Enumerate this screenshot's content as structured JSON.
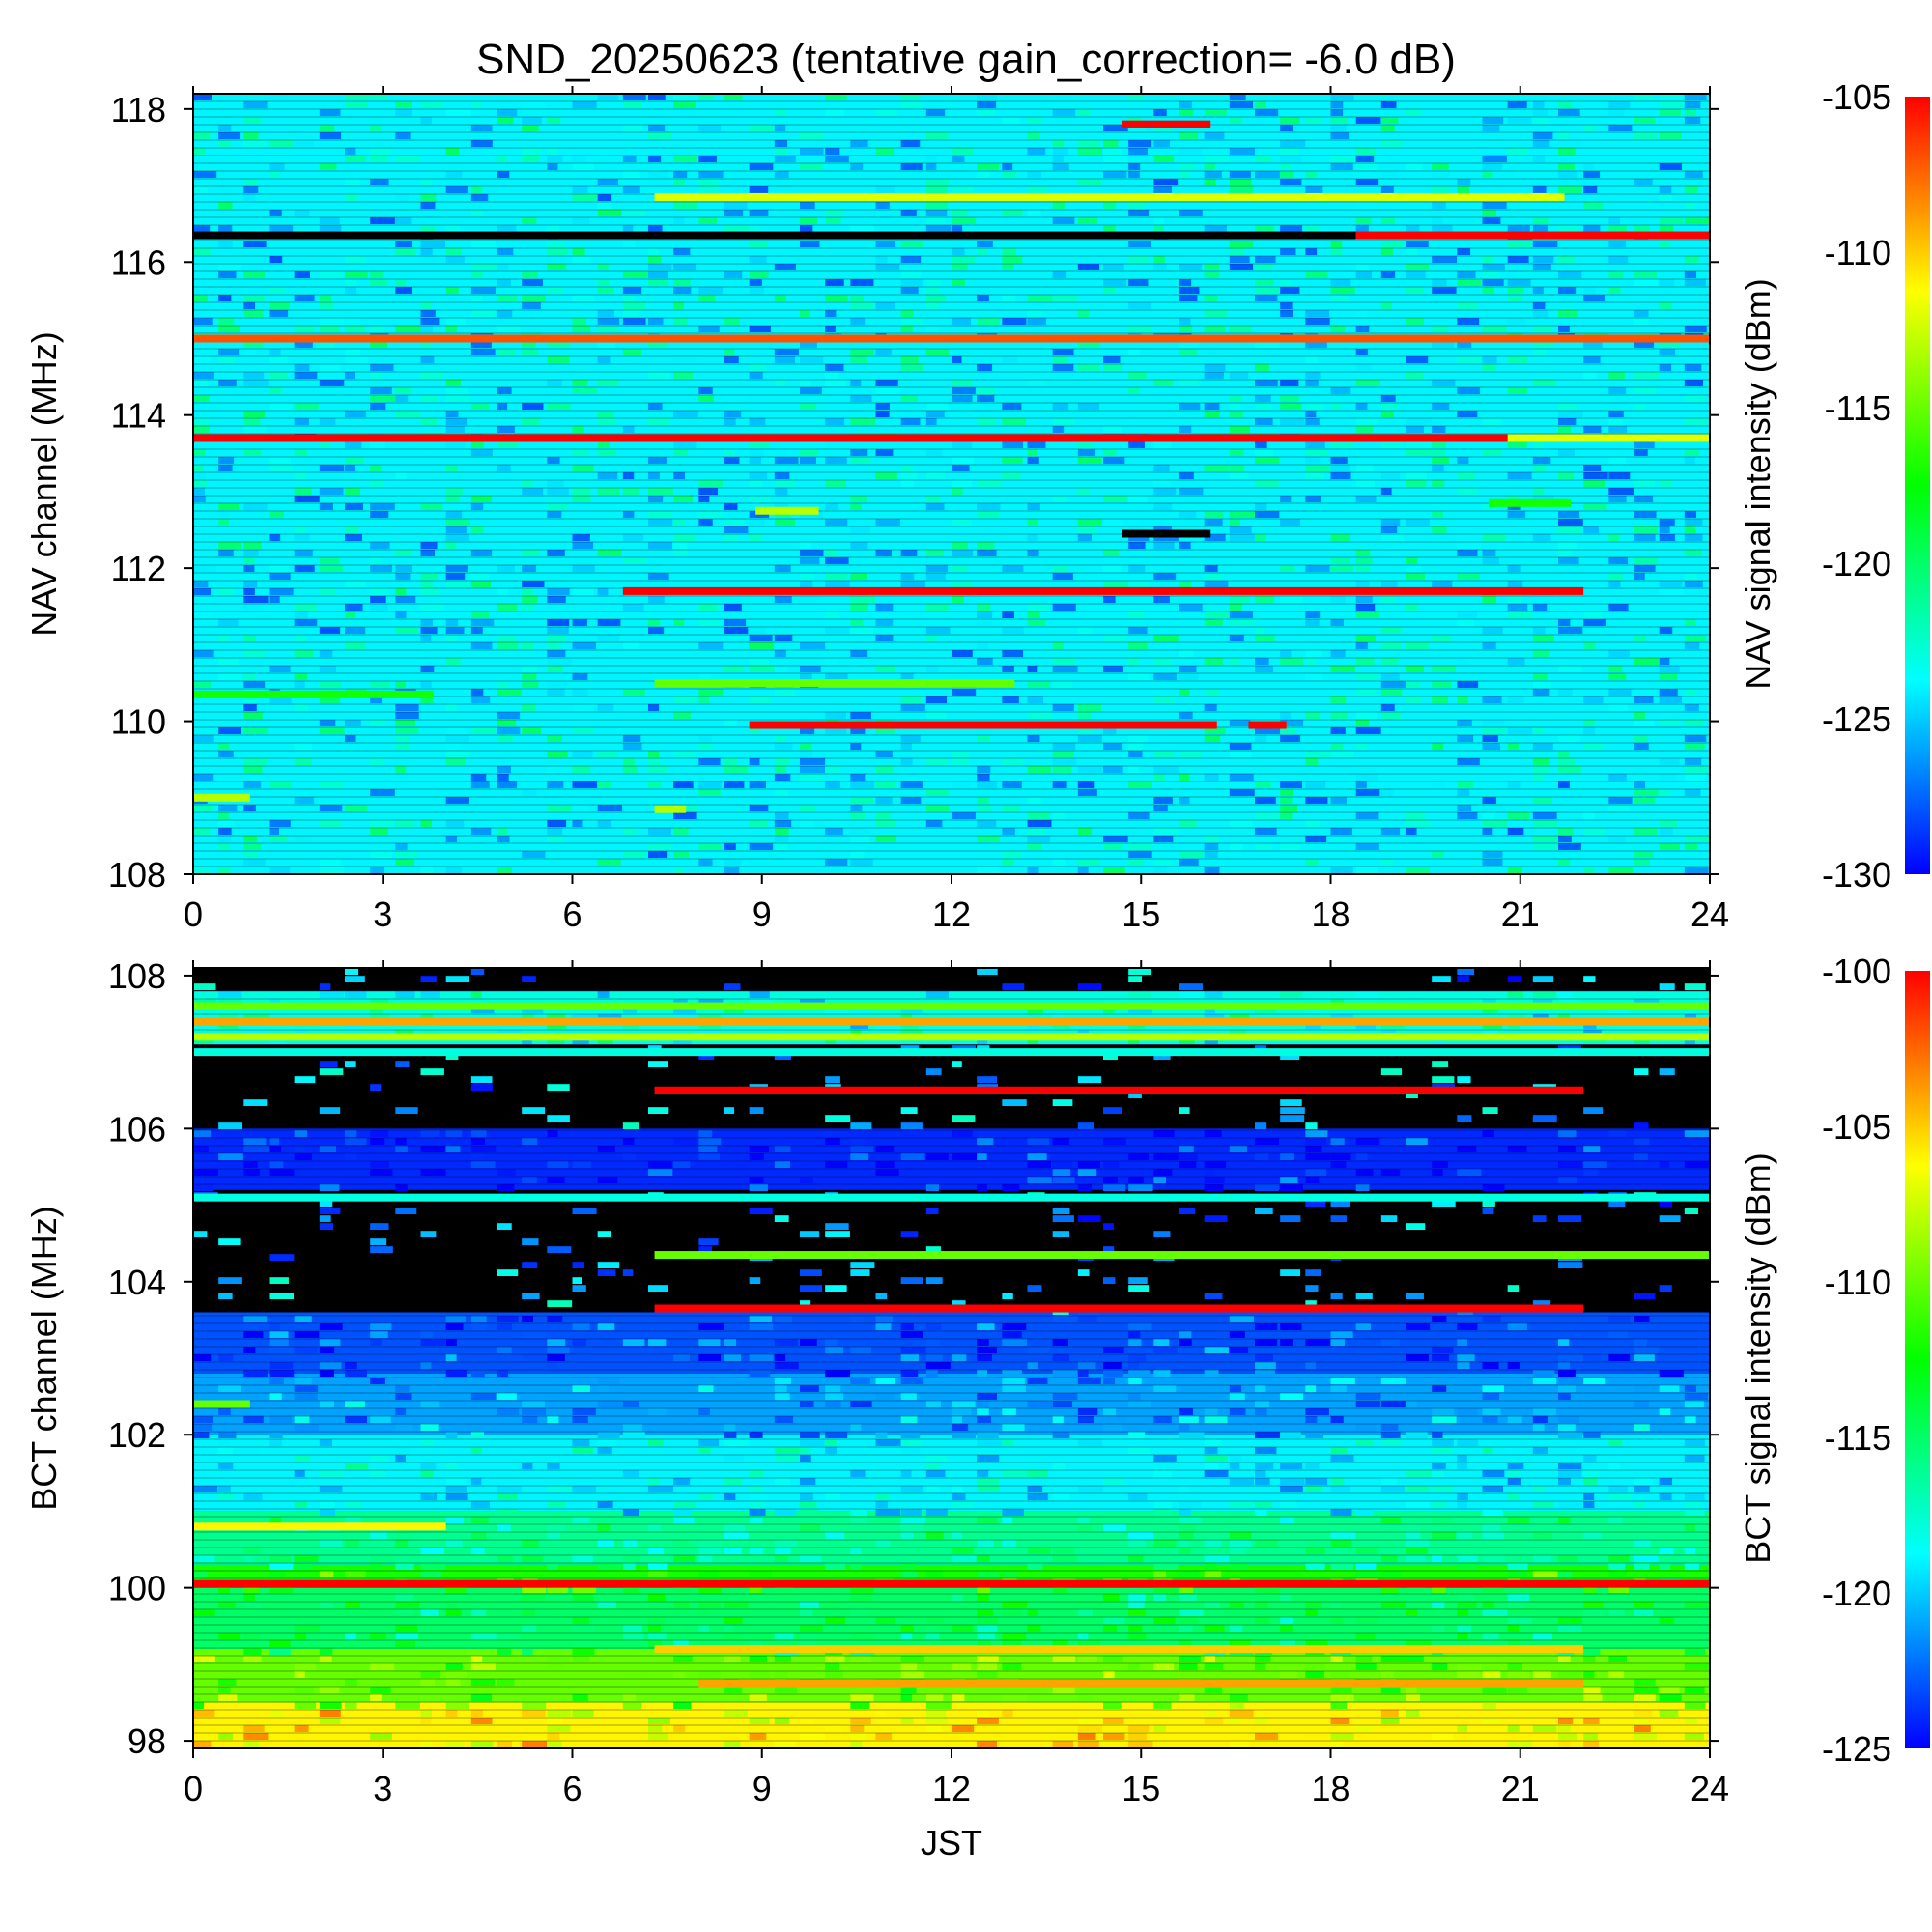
{
  "title": "SND_20250623 (tentative gain_correction= -6.0 dB)",
  "xlabel": "JST",
  "chart_data": [
    {
      "type": "heatmap",
      "name": "NAV",
      "ylabel": "NAV channel (MHz)",
      "cbar_label": "NAV signal intensity (dBm)",
      "xlim": [
        0,
        24
      ],
      "ylim": [
        108,
        118.2
      ],
      "x_ticks": [
        0,
        3,
        6,
        9,
        12,
        15,
        18,
        21,
        24
      ],
      "y_ticks": [
        108,
        110,
        112,
        114,
        116,
        118
      ],
      "cbar_range": [
        -130,
        -105
      ],
      "cbar_ticks": [
        -130,
        -125,
        -120,
        -115,
        -110,
        -105
      ],
      "colormap": [
        "#0000ff",
        "#00ffff",
        "#00ff00",
        "#ffff00",
        "#ff0000"
      ],
      "background_level": -124,
      "features": [
        {
          "y": 117.8,
          "x": [
            14.7,
            16.1
          ],
          "level": -105
        },
        {
          "y": 116.85,
          "x": [
            7.3,
            21.7
          ],
          "level": -112
        },
        {
          "y": 116.35,
          "x": [
            0,
            18.4
          ],
          "level": null
        },
        {
          "y": 116.35,
          "x": [
            18.4,
            24
          ],
          "level": -105
        },
        {
          "y": 115.0,
          "x": [
            0,
            24
          ],
          "level": -107
        },
        {
          "y": 113.7,
          "x": [
            0,
            24
          ],
          "level": -105
        },
        {
          "y": 113.7,
          "x": [
            20.8,
            24
          ],
          "level": -112
        },
        {
          "y": 112.85,
          "x": [
            20.5,
            21.8
          ],
          "level": -117
        },
        {
          "y": 112.75,
          "x": [
            8.9,
            9.9
          ],
          "level": -113
        },
        {
          "y": 112.45,
          "x": [
            14.7,
            16.1
          ],
          "level": null
        },
        {
          "y": 111.7,
          "x": [
            6.8,
            22.0
          ],
          "level": -105
        },
        {
          "y": 110.5,
          "x": [
            7.3,
            13.0
          ],
          "level": -115
        },
        {
          "y": 110.35,
          "x": [
            0,
            3.8
          ],
          "level": -117
        },
        {
          "y": 109.95,
          "x": [
            8.8,
            16.2
          ],
          "level": -105
        },
        {
          "y": 109.95,
          "x": [
            16.7,
            17.3
          ],
          "level": -105
        },
        {
          "y": 108.85,
          "x": [
            7.3,
            7.8
          ],
          "level": -113
        },
        {
          "y": 109.0,
          "x": [
            0,
            0.9
          ],
          "level": -113
        }
      ]
    },
    {
      "type": "heatmap",
      "name": "BCT",
      "ylabel": "BCT channel (MHz)",
      "cbar_label": "BCT signal intensity (dBm)",
      "xlim": [
        0,
        24
      ],
      "ylim": [
        97.9,
        108.1
      ],
      "x_ticks": [
        0,
        3,
        6,
        9,
        12,
        15,
        18,
        21,
        24
      ],
      "y_ticks": [
        98,
        100,
        102,
        104,
        106,
        108
      ],
      "cbar_range": [
        -125,
        -100
      ],
      "cbar_ticks": [
        -125,
        -120,
        -115,
        -110,
        -105,
        -100
      ],
      "colormap": [
        "#0000ff",
        "#00ffff",
        "#00ff00",
        "#ffff00",
        "#ff0000"
      ],
      "band_levels": [
        {
          "y": [
            97.9,
            98.5
          ],
          "level": -106
        },
        {
          "y": [
            98.5,
            99.2
          ],
          "level": -110
        },
        {
          "y": [
            99.2,
            100.0
          ],
          "level": -115
        },
        {
          "y": [
            100.0,
            100.3
          ],
          "level": -112
        },
        {
          "y": [
            100.3,
            101.0
          ],
          "level": -116
        },
        {
          "y": [
            101.0,
            102.0
          ],
          "level": -119
        },
        {
          "y": [
            102.0,
            102.8
          ],
          "level": -121
        },
        {
          "y": [
            102.8,
            103.6
          ],
          "level": -123
        },
        {
          "y": [
            103.6,
            104.2
          ],
          "level": null
        },
        {
          "y": [
            104.2,
            105.2
          ],
          "level": null
        },
        {
          "y": [
            105.2,
            106.0
          ],
          "level": -124
        },
        {
          "y": [
            106.0,
            107.1
          ],
          "level": null
        },
        {
          "y": [
            107.1,
            107.8
          ],
          "level": -118
        },
        {
          "y": [
            107.8,
            108.1
          ],
          "level": null
        }
      ],
      "features": [
        {
          "y": 107.6,
          "x": [
            0,
            24
          ],
          "level": -110
        },
        {
          "y": 107.4,
          "x": [
            0,
            24
          ],
          "level": -104
        },
        {
          "y": 107.2,
          "x": [
            0,
            24
          ],
          "level": -108
        },
        {
          "y": 107.0,
          "x": [
            0,
            24
          ],
          "level": -118
        },
        {
          "y": 106.5,
          "x": [
            7.3,
            22.0
          ],
          "level": -100
        },
        {
          "y": 105.1,
          "x": [
            0,
            24
          ],
          "level": -118
        },
        {
          "y": 104.35,
          "x": [
            7.3,
            24
          ],
          "level": -110
        },
        {
          "y": 103.65,
          "x": [
            7.3,
            22.0
          ],
          "level": -100
        },
        {
          "y": 102.4,
          "x": [
            0,
            0.9
          ],
          "level": -110
        },
        {
          "y": 100.8,
          "x": [
            0,
            4.0
          ],
          "level": -106
        },
        {
          "y": 100.05,
          "x": [
            0,
            24
          ],
          "level": -100
        },
        {
          "y": 99.2,
          "x": [
            7.3,
            22.0
          ],
          "level": -105
        },
        {
          "y": 98.75,
          "x": [
            8.0,
            22.0
          ],
          "level": -104
        }
      ]
    }
  ]
}
